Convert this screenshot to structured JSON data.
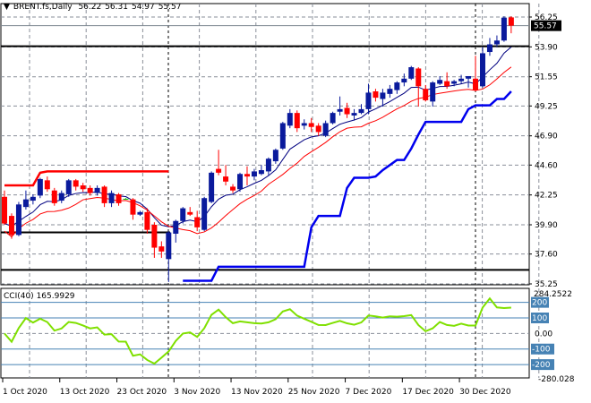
{
  "header": {
    "symbol": "BRENT.fs,Daily",
    "open": "56.22",
    "high": "56.31",
    "low": "54.97",
    "close": "55.57"
  },
  "cci_header": {
    "label": "CCI(40)",
    "value": "165.9929"
  },
  "colors": {
    "bull": "#0a1a9c",
    "bear": "#ff0000",
    "fast_ma": "#000080",
    "slow_ma": "#ff0000",
    "channel_upper": "#ff0000",
    "channel_lower": "#0000ee",
    "cci": "#7fe000",
    "cci_level": "#4682b4"
  },
  "chart_data": [
    {
      "type": "candlestick",
      "title": "BRENT.fs,Daily",
      "price_ticks": [
        "56.25",
        "53.90",
        "51.55",
        "49.25",
        "46.90",
        "44.60",
        "42.25",
        "39.90",
        "37.60",
        "35.25"
      ],
      "ylim": [
        35.25,
        56.25
      ],
      "current_price_label": "55.57",
      "x_labels": [
        "1 Oct 2020",
        "13 Oct 2020",
        "23 Oct 2020",
        "3 Nov 2020",
        "13 Nov 2020",
        "25 Nov 2020",
        "7 Dec 2020",
        "17 Dec 2020",
        "30 Dec 2020"
      ],
      "x_label_index": [
        0,
        8,
        16,
        24,
        32,
        40,
        48,
        56,
        64
      ],
      "horizontal_levels": [
        53.95,
        39.3,
        36.35
      ],
      "candles_ohlc": [
        [
          42.1,
          42.6,
          39.9,
          40.0
        ],
        [
          40.6,
          40.8,
          38.8,
          39.1
        ],
        [
          39.1,
          41.7,
          39.0,
          41.5
        ],
        [
          41.3,
          42.6,
          41.1,
          41.9
        ],
        [
          41.8,
          42.3,
          41.5,
          42.1
        ],
        [
          42.2,
          43.6,
          42.0,
          43.5
        ],
        [
          43.4,
          43.7,
          42.5,
          42.7
        ],
        [
          42.6,
          42.8,
          41.4,
          41.6
        ],
        [
          41.8,
          42.6,
          41.6,
          42.4
        ],
        [
          42.3,
          43.5,
          42.1,
          43.4
        ],
        [
          43.4,
          43.5,
          42.6,
          42.9
        ],
        [
          43.0,
          43.2,
          42.5,
          42.7
        ],
        [
          42.8,
          43.0,
          42.2,
          42.4
        ],
        [
          42.4,
          43.0,
          42.2,
          42.8
        ],
        [
          42.9,
          43.0,
          41.3,
          41.6
        ],
        [
          41.6,
          42.6,
          41.3,
          42.4
        ],
        [
          42.3,
          42.4,
          41.4,
          41.6
        ],
        [
          41.95,
          42.0,
          41.9,
          41.95
        ],
        [
          41.9,
          42.0,
          40.3,
          40.7
        ],
        [
          40.7,
          41.0,
          40.6,
          40.9
        ],
        [
          40.9,
          41.2,
          39.2,
          39.5
        ],
        [
          39.9,
          40.1,
          37.3,
          38.1
        ],
        [
          38.2,
          38.6,
          37.3,
          37.8
        ],
        [
          37.2,
          39.4,
          35.4,
          39.3
        ],
        [
          39.2,
          40.3,
          38.5,
          40.2
        ],
        [
          40.2,
          41.3,
          40.0,
          41.2
        ],
        [
          40.9,
          41.3,
          40.6,
          40.7
        ],
        [
          40.5,
          41.0,
          39.4,
          39.7
        ],
        [
          39.5,
          42.1,
          39.4,
          42.0
        ],
        [
          41.7,
          44.1,
          41.6,
          44.0
        ],
        [
          44.3,
          45.8,
          43.8,
          44.0
        ],
        [
          43.7,
          44.6,
          43.0,
          43.3
        ],
        [
          42.9,
          43.1,
          42.4,
          42.6
        ],
        [
          42.7,
          44.0,
          42.5,
          43.9
        ],
        [
          43.9,
          44.5,
          43.0,
          43.7
        ],
        [
          43.7,
          44.3,
          43.4,
          44.1
        ],
        [
          43.9,
          44.6,
          43.8,
          44.2
        ],
        [
          44.1,
          45.2,
          43.8,
          45.1
        ],
        [
          44.9,
          45.9,
          44.7,
          45.8
        ],
        [
          45.9,
          48.0,
          45.8,
          47.9
        ],
        [
          47.7,
          49.0,
          47.5,
          48.7
        ],
        [
          48.7,
          48.9,
          47.2,
          47.5
        ],
        [
          47.7,
          48.2,
          47.4,
          47.9
        ],
        [
          47.9,
          48.3,
          47.2,
          47.6
        ],
        [
          47.7,
          47.9,
          46.9,
          47.2
        ],
        [
          46.9,
          48.1,
          46.8,
          47.9
        ],
        [
          47.9,
          48.8,
          47.8,
          48.7
        ],
        [
          48.8,
          50.0,
          48.5,
          49.0
        ],
        [
          49.1,
          49.5,
          48.3,
          48.6
        ],
        [
          48.5,
          49.0,
          48.1,
          48.7
        ],
        [
          48.7,
          49.4,
          48.6,
          49.0
        ],
        [
          49.0,
          51.0,
          48.6,
          50.3
        ],
        [
          50.4,
          50.6,
          49.6,
          49.9
        ],
        [
          49.8,
          50.6,
          49.2,
          50.3
        ],
        [
          50.2,
          50.9,
          49.9,
          50.6
        ],
        [
          50.5,
          51.2,
          50.2,
          51.1
        ],
        [
          51.1,
          51.8,
          50.8,
          51.4
        ],
        [
          51.4,
          52.4,
          51.3,
          52.3
        ],
        [
          52.2,
          52.3,
          49.2,
          50.8
        ],
        [
          50.6,
          50.9,
          49.6,
          49.7
        ],
        [
          49.6,
          51.2,
          49.2,
          51.1
        ],
        [
          51.0,
          51.6,
          50.9,
          51.3
        ],
        [
          51.2,
          51.9,
          50.6,
          50.8
        ],
        [
          51.0,
          51.3,
          50.8,
          51.2
        ],
        [
          51.2,
          51.7,
          51.0,
          51.4
        ],
        [
          51.4,
          51.6,
          50.7,
          51.6
        ],
        [
          51.4,
          53.2,
          50.4,
          50.5
        ],
        [
          50.8,
          53.9,
          50.7,
          53.4
        ],
        [
          53.5,
          54.6,
          53.2,
          54.1
        ],
        [
          54.1,
          54.8,
          53.9,
          54.4
        ],
        [
          54.4,
          56.31,
          54.3,
          56.2
        ],
        [
          56.22,
          56.31,
          54.97,
          55.57
        ]
      ]
    },
    {
      "type": "line",
      "title": "CCI(40)",
      "ylim": [
        -280.028,
        284.2522
      ],
      "top_label": "284.2522",
      "bottom_label": "-280.028",
      "levels": [
        {
          "value": 200,
          "label": "200"
        },
        {
          "value": 100,
          "label": "100"
        },
        {
          "value": -100,
          "label": "-100"
        },
        {
          "value": -200,
          "label": "-200"
        }
      ],
      "zero_label": "0.00",
      "last_value": 165.9929
    }
  ]
}
